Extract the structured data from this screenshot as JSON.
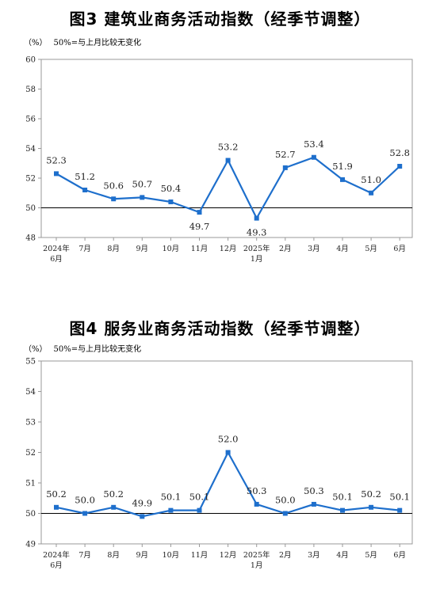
{
  "chart_data": [
    {
      "type": "line",
      "title": "图3  建筑业商务活动指数（经季节调整）",
      "unit": "（%）",
      "note": "50%=与上月比较无变化",
      "categories": [
        "2024年\n6月",
        "7月",
        "8月",
        "9月",
        "10月",
        "11月",
        "12月",
        "2025年\n1月",
        "2月",
        "3月",
        "4月",
        "5月",
        "6月"
      ],
      "series": [
        {
          "values": [
            52.3,
            51.2,
            50.6,
            50.7,
            50.4,
            49.7,
            53.2,
            49.3,
            52.7,
            53.4,
            51.9,
            51.0,
            52.8
          ]
        }
      ],
      "value_labels": [
        "52.3",
        "51.2",
        "50.6",
        "50.7",
        "50.4",
        "49.7",
        "53.2",
        "49.3",
        "52.7",
        "53.4",
        "51.9",
        "51.0",
        "52.8"
      ],
      "label_positions": [
        "above",
        "above",
        "above",
        "above",
        "above",
        "below",
        "above",
        "below",
        "above",
        "above",
        "above",
        "above",
        "above"
      ],
      "yticks": [
        "48",
        "50",
        "52",
        "54",
        "56",
        "58",
        "60"
      ],
      "ylim": [
        48,
        60
      ],
      "baseline": 50,
      "grid": false,
      "color": "#1e6fcc"
    },
    {
      "type": "line",
      "title": "图4  服务业商务活动指数（经季节调整）",
      "unit": "（%）",
      "note": "50%=与上月比较无变化",
      "categories": [
        "2024年\n6月",
        "7月",
        "8月",
        "9月",
        "10月",
        "11月",
        "12月",
        "2025年\n1月",
        "2月",
        "3月",
        "4月",
        "5月",
        "6月"
      ],
      "series": [
        {
          "values": [
            50.2,
            50.0,
            50.2,
            49.9,
            50.1,
            50.1,
            52.0,
            50.3,
            50.0,
            50.3,
            50.1,
            50.2,
            50.1
          ]
        }
      ],
      "value_labels": [
        "50.2",
        "50.0",
        "50.2",
        "49.9",
        "50.1",
        "50.1",
        "52.0",
        "50.3",
        "50.0",
        "50.3",
        "50.1",
        "50.2",
        "50.1"
      ],
      "label_positions": [
        "above",
        "above",
        "above",
        "above",
        "above",
        "above",
        "above",
        "above",
        "above",
        "above",
        "above",
        "above",
        "above"
      ],
      "yticks": [
        "49",
        "50",
        "51",
        "52",
        "53",
        "54",
        "55"
      ],
      "ylim": [
        49,
        55
      ],
      "baseline": 50,
      "grid": false,
      "color": "#1e6fcc"
    }
  ]
}
